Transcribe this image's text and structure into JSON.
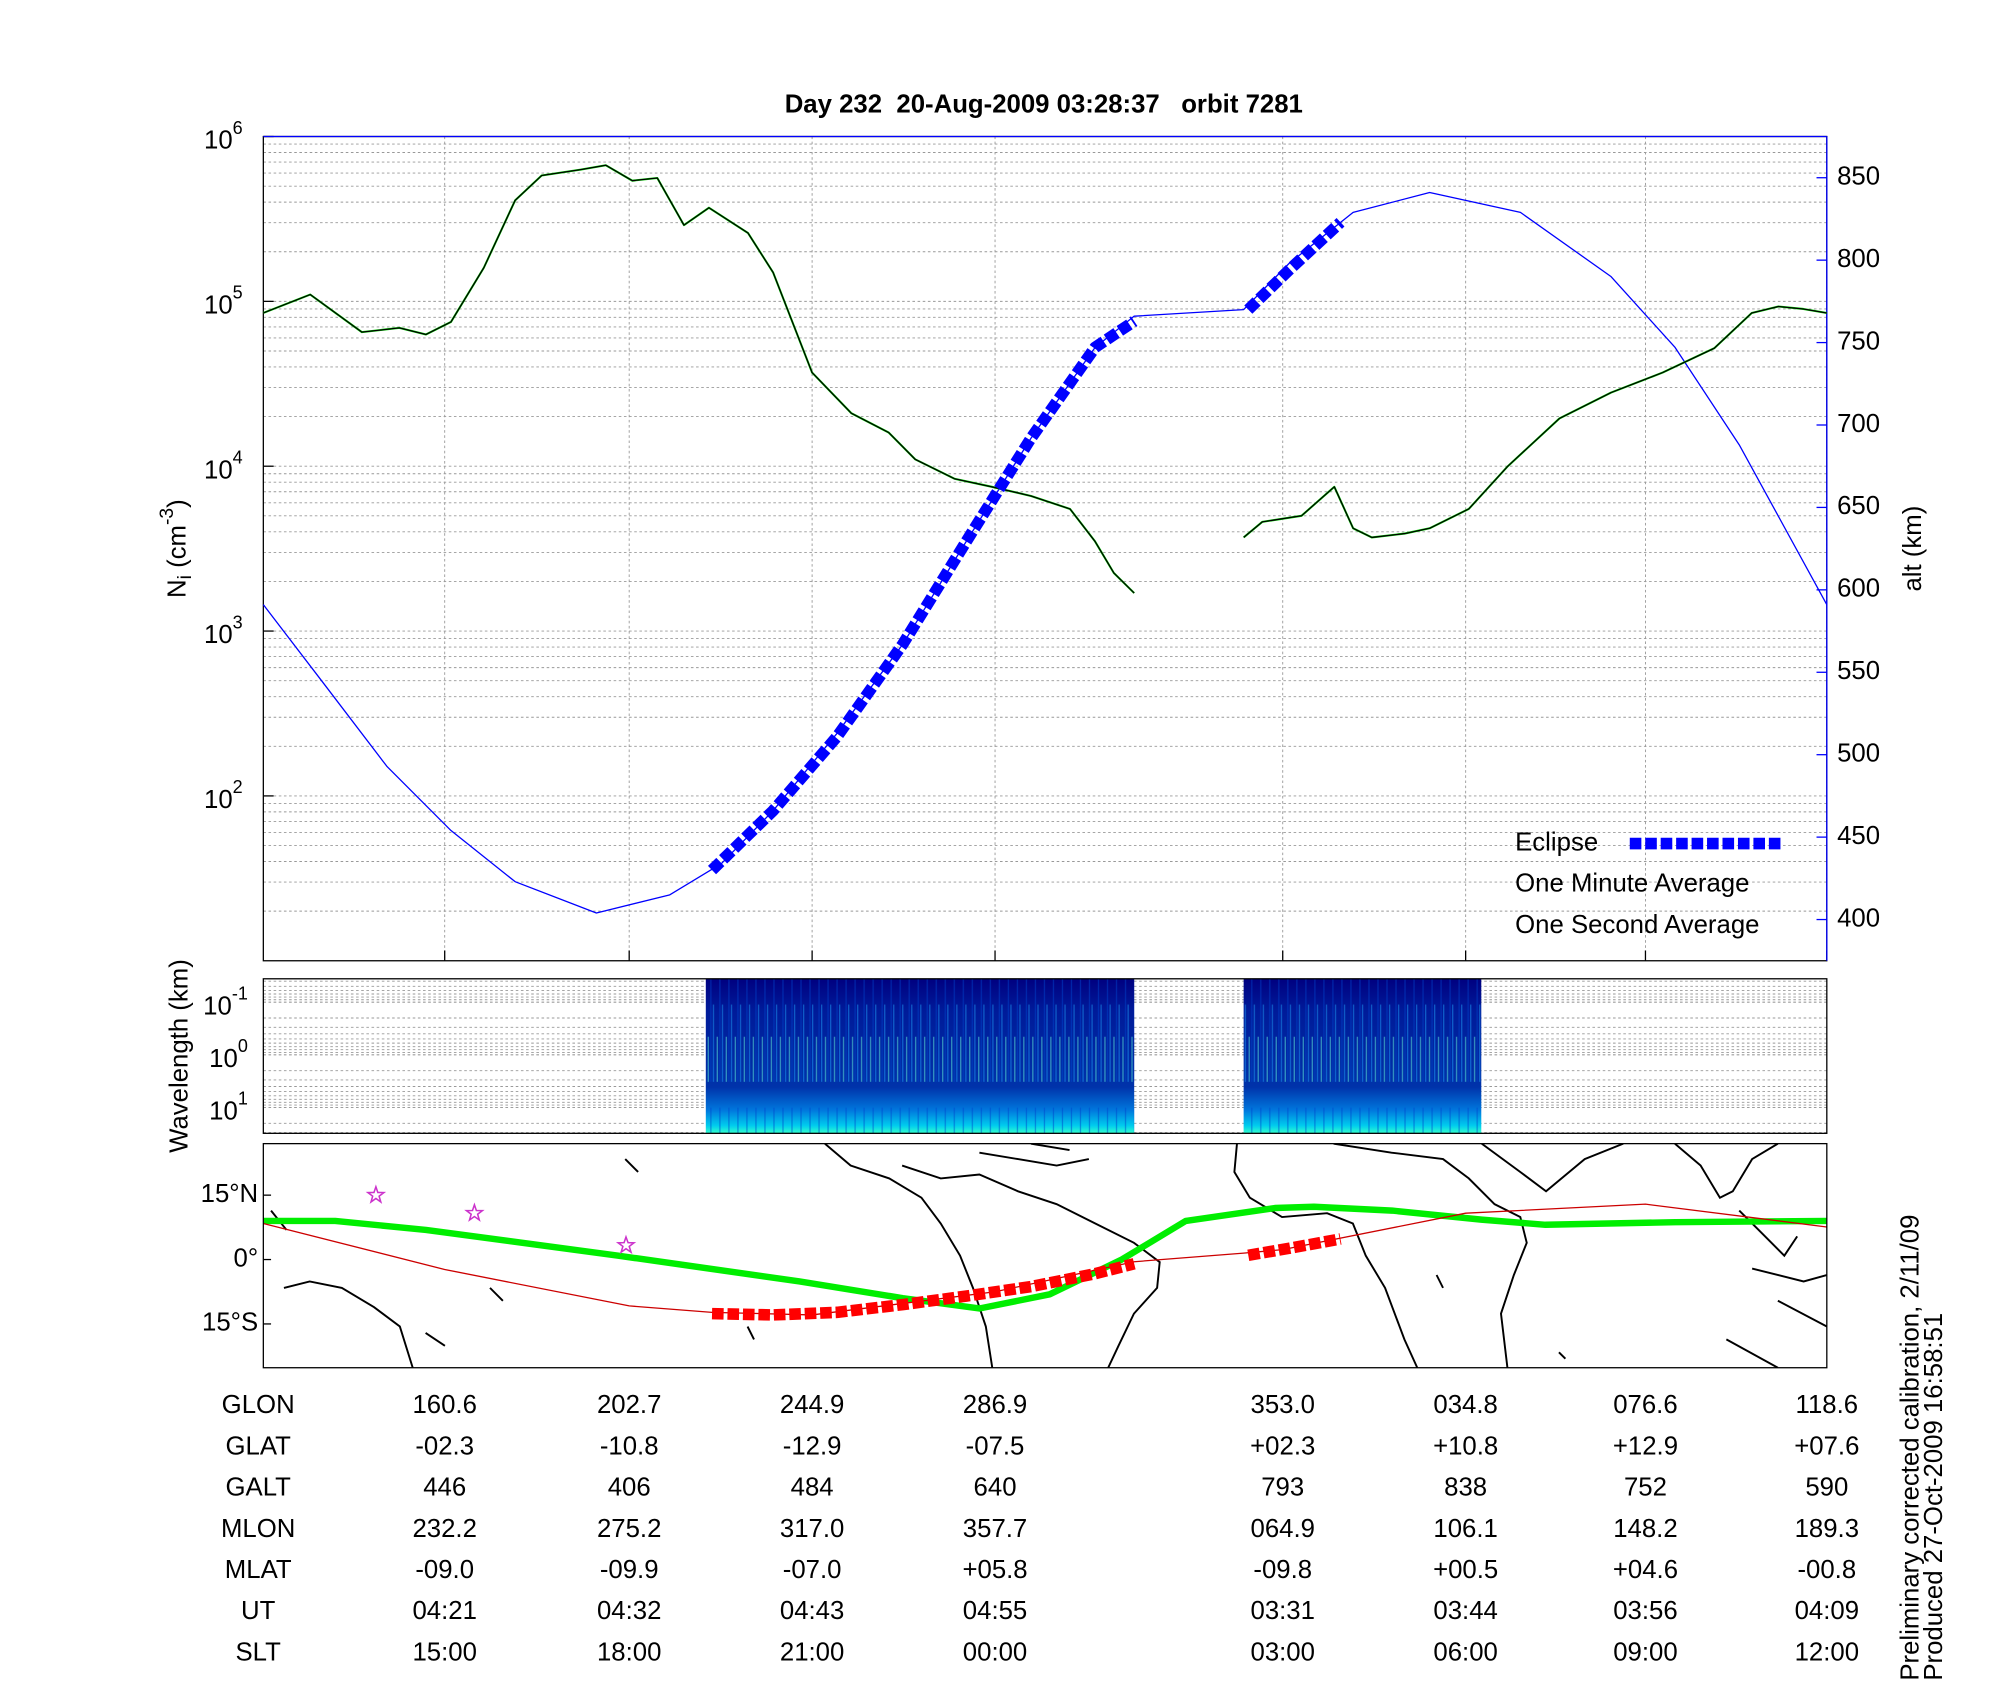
{
  "title": "Day 232  20-Aug-2009 03:28:37   orbit 7281",
  "chart_data": [
    {
      "type": "line",
      "ylabel": [
        "N",
        "i",
        " (cm",
        "-3",
        ")"
      ],
      "y2label": "alt (km)",
      "xlim": [
        0,
        100
      ],
      "xticks": [
        11.6,
        23.4,
        35.1,
        46.8,
        65.2,
        76.9,
        88.4,
        100
      ],
      "ylim": [
        10,
        1000000
      ],
      "ylog": true,
      "yticks": [
        {
          "value": 100,
          "label": "10",
          "exponent": "2"
        },
        {
          "value": 1000,
          "label": "10",
          "exponent": "3"
        },
        {
          "value": 10000,
          "label": "10",
          "exponent": "4"
        },
        {
          "value": 100000,
          "label": "10",
          "exponent": "5"
        },
        {
          "value": 1000000,
          "label": "10",
          "exponent": "6"
        }
      ],
      "y2lim": [
        375,
        875
      ],
      "y2ticks": [
        400,
        450,
        500,
        550,
        600,
        650,
        700,
        750,
        800,
        850
      ],
      "y2color": "#0000ff",
      "grid": true,
      "legend": "lower right",
      "series": [
        {
          "color": "#0000ff",
          "axis": "y2",
          "style": "thin",
          "x": [
            0,
            3.8,
            7.9,
            12.0,
            16.1,
            21.3,
            26.0,
            29.3,
            32.6,
            36.7,
            40.9,
            45.0,
            49.1,
            53.2,
            55.7,
            62.7,
            65.6,
            69.7,
            74.6,
            80.4,
            86.2,
            90.3,
            94.4,
            100
          ],
          "values": [
            591,
            544,
            493,
            454,
            423,
            404,
            415,
            434,
            466,
            513,
            567,
            630,
            692,
            747,
            766,
            770,
            798,
            829,
            841,
            829,
            790,
            747,
            688,
            591
          ]
        },
        {
          "name": "Eclipse",
          "color": "#0000ff",
          "axis": "y2",
          "style": "dashed-thick",
          "x": [
            28.7,
            32.6,
            36.7,
            40.9,
            45.0,
            49.1,
            53.2,
            55.7,
            59.3,
            63.0,
            65.6,
            68.9
          ],
          "values": [
            430,
            466,
            511,
            567,
            630,
            692,
            747,
            763,
            null,
            770,
            794,
            823
          ]
        },
        {
          "name": "One Minute Average",
          "color": "#000000",
          "style": "thin",
          "x": [
            0,
            3.0,
            6.3,
            8.7,
            10.4,
            12.0,
            14.1,
            16.1,
            17.8,
            20.3,
            21.9,
            23.6,
            25.2,
            26.9,
            28.5,
            31.0,
            32.6,
            35.1,
            37.6,
            40.0,
            41.7,
            44.2,
            46.6,
            49.1,
            51.6,
            53.2,
            54.4,
            55.7,
            59.3,
            62.7,
            63.9,
            66.4,
            68.5,
            69.7,
            70.9,
            73.0,
            74.6,
            77.1,
            79.6,
            82.9,
            86.2,
            89.5,
            92.8,
            95.2,
            96.9,
            98.5,
            100
          ],
          "values": [
            85000,
            110000,
            65000,
            69000,
            63000,
            75000,
            160000,
            410000,
            580000,
            630000,
            670000,
            540000,
            560000,
            290000,
            370000,
            260000,
            150000,
            37000,
            21000,
            16000,
            11000,
            8400,
            7500,
            6600,
            5500,
            3500,
            2250,
            1700,
            null,
            3700,
            4600,
            5000,
            7500,
            4200,
            3700,
            3900,
            4200,
            5500,
            10000,
            19500,
            28000,
            37000,
            52000,
            85000,
            93000,
            90000,
            85000
          ]
        },
        {
          "name": "One Second Average",
          "color": "#00dd00",
          "style": "medium",
          "x": [
            0,
            3.0,
            6.3,
            8.7,
            10.4,
            12.0,
            14.1,
            16.1,
            17.8,
            20.3,
            21.9,
            23.6,
            25.2,
            26.9,
            28.5,
            31.0,
            32.6,
            35.1,
            37.6,
            40.0,
            41.7,
            44.2,
            46.6,
            49.1,
            51.6,
            53.2,
            54.4,
            55.7,
            59.3,
            62.7,
            63.9,
            66.4,
            68.5,
            69.7,
            70.9,
            73.0,
            74.6,
            77.1,
            79.6,
            82.9,
            86.2,
            89.5,
            92.8,
            95.2,
            96.9,
            98.5,
            100
          ],
          "values": [
            85000,
            110000,
            65000,
            69000,
            63000,
            75000,
            160000,
            410000,
            580000,
            630000,
            670000,
            540000,
            560000,
            290000,
            370000,
            260000,
            150000,
            37000,
            21000,
            16000,
            11000,
            8400,
            7500,
            6600,
            5500,
            3500,
            2250,
            1700,
            null,
            3700,
            4600,
            5000,
            7500,
            4200,
            3700,
            3900,
            4200,
            5500,
            10000,
            19500,
            28000,
            37000,
            52000,
            85000,
            93000,
            90000,
            85000
          ]
        }
      ]
    },
    {
      "type": "heatmap",
      "ylabel": "Wavelength (km)",
      "xlim": [
        0,
        100
      ],
      "ylim": [
        0.036,
        31
      ],
      "ylog": true,
      "yinverted": true,
      "yticks": [
        {
          "value": 0.1,
          "label": "10",
          "exponent": "-1"
        },
        {
          "value": 1,
          "label": "10",
          "exponent": "0"
        },
        {
          "value": 10,
          "label": "10",
          "exponent": "1"
        }
      ],
      "segments": [
        [
          28.3,
          55.7
        ],
        [
          62.7,
          77.9
        ]
      ]
    },
    {
      "type": "map",
      "xlim": [
        0,
        100
      ],
      "ylim": [
        -25.2,
        27
      ],
      "yticks": [
        {
          "value": 15,
          "label": "15°N"
        },
        {
          "value": 0,
          "label": "0°"
        },
        {
          "value": -15,
          "label": "15°S"
        }
      ],
      "series": [
        {
          "color": "#00ee00",
          "style": "thick",
          "x": [
            0,
            4.6,
            10.4,
            22.7,
            34.3,
            40.9,
            45.8,
            50.3,
            54.9,
            59.0,
            64.7,
            67.2,
            72.2,
            77.9,
            82.0,
            90.3,
            100
          ],
          "values": [
            9.0,
            9.0,
            6.9,
            0.9,
            -5.1,
            -9.0,
            -11.4,
            -8.1,
            0,
            9.0,
            12.0,
            12.3,
            11.4,
            9.3,
            8.1,
            8.7,
            9.0
          ]
        },
        {
          "color": "#cc0000",
          "style": "thin",
          "x": [
            0,
            11.6,
            23.4,
            28.7,
            35.1,
            46.8,
            55.7,
            62.7,
            65.2,
            76.9,
            88.4,
            100
          ],
          "values": [
            8.4,
            -2.3,
            -10.8,
            -12.3,
            -12.9,
            -7.5,
            -0.5,
            1.5,
            2.3,
            10.8,
            12.9,
            7.6
          ]
        },
        {
          "color": "#ff0000",
          "style": "dashed-thick",
          "x": [
            28.7,
            32.6,
            36.7,
            40.9,
            45.0,
            49.1,
            53.2,
            55.7,
            59.3,
            63.0,
            65.6,
            68.9
          ],
          "values": [
            -12.6,
            -12.9,
            -12.3,
            -10.5,
            -8.5,
            -6.3,
            -3.3,
            -1.0,
            null,
            1.0,
            2.6,
            4.8
          ]
        }
      ],
      "markers": {
        "color": "#cc33cc",
        "x": [
          7.2,
          13.5,
          23.2
        ],
        "values": [
          15.0,
          10.8,
          3.3
        ]
      }
    }
  ],
  "table": {
    "rows": [
      {
        "label": "GLON",
        "cells": [
          "160.6",
          "202.7",
          "244.9",
          "286.9",
          "353.0",
          "034.8",
          "076.6",
          "118.6"
        ]
      },
      {
        "label": "GLAT",
        "cells": [
          "-02.3",
          "-10.8",
          "-12.9",
          "-07.5",
          "+02.3",
          "+10.8",
          "+12.9",
          "+07.6"
        ]
      },
      {
        "label": "GALT",
        "cells": [
          "446",
          "406",
          "484",
          "640",
          "793",
          "838",
          "752",
          "590"
        ]
      },
      {
        "label": "MLON",
        "cells": [
          "232.2",
          "275.2",
          "317.0",
          "357.7",
          "064.9",
          "106.1",
          "148.2",
          "189.3"
        ]
      },
      {
        "label": "MLAT",
        "cells": [
          "-09.0",
          "-09.9",
          "-07.0",
          "+05.8",
          "-09.8",
          "+00.5",
          "+04.6",
          "-00.8"
        ]
      },
      {
        "label": "UT",
        "cells": [
          "04:21",
          "04:32",
          "04:43",
          "04:55",
          "03:31",
          "03:44",
          "03:56",
          "04:09"
        ]
      },
      {
        "label": "SLT",
        "cells": [
          "15:00",
          "18:00",
          "21:00",
          "00:00",
          "03:00",
          "06:00",
          "09:00",
          "12:00"
        ]
      }
    ]
  },
  "footnote": [
    "Preliminary corrected calibration, 2/11/09",
    "Produced 27-Oct-2009 16:58:51"
  ]
}
